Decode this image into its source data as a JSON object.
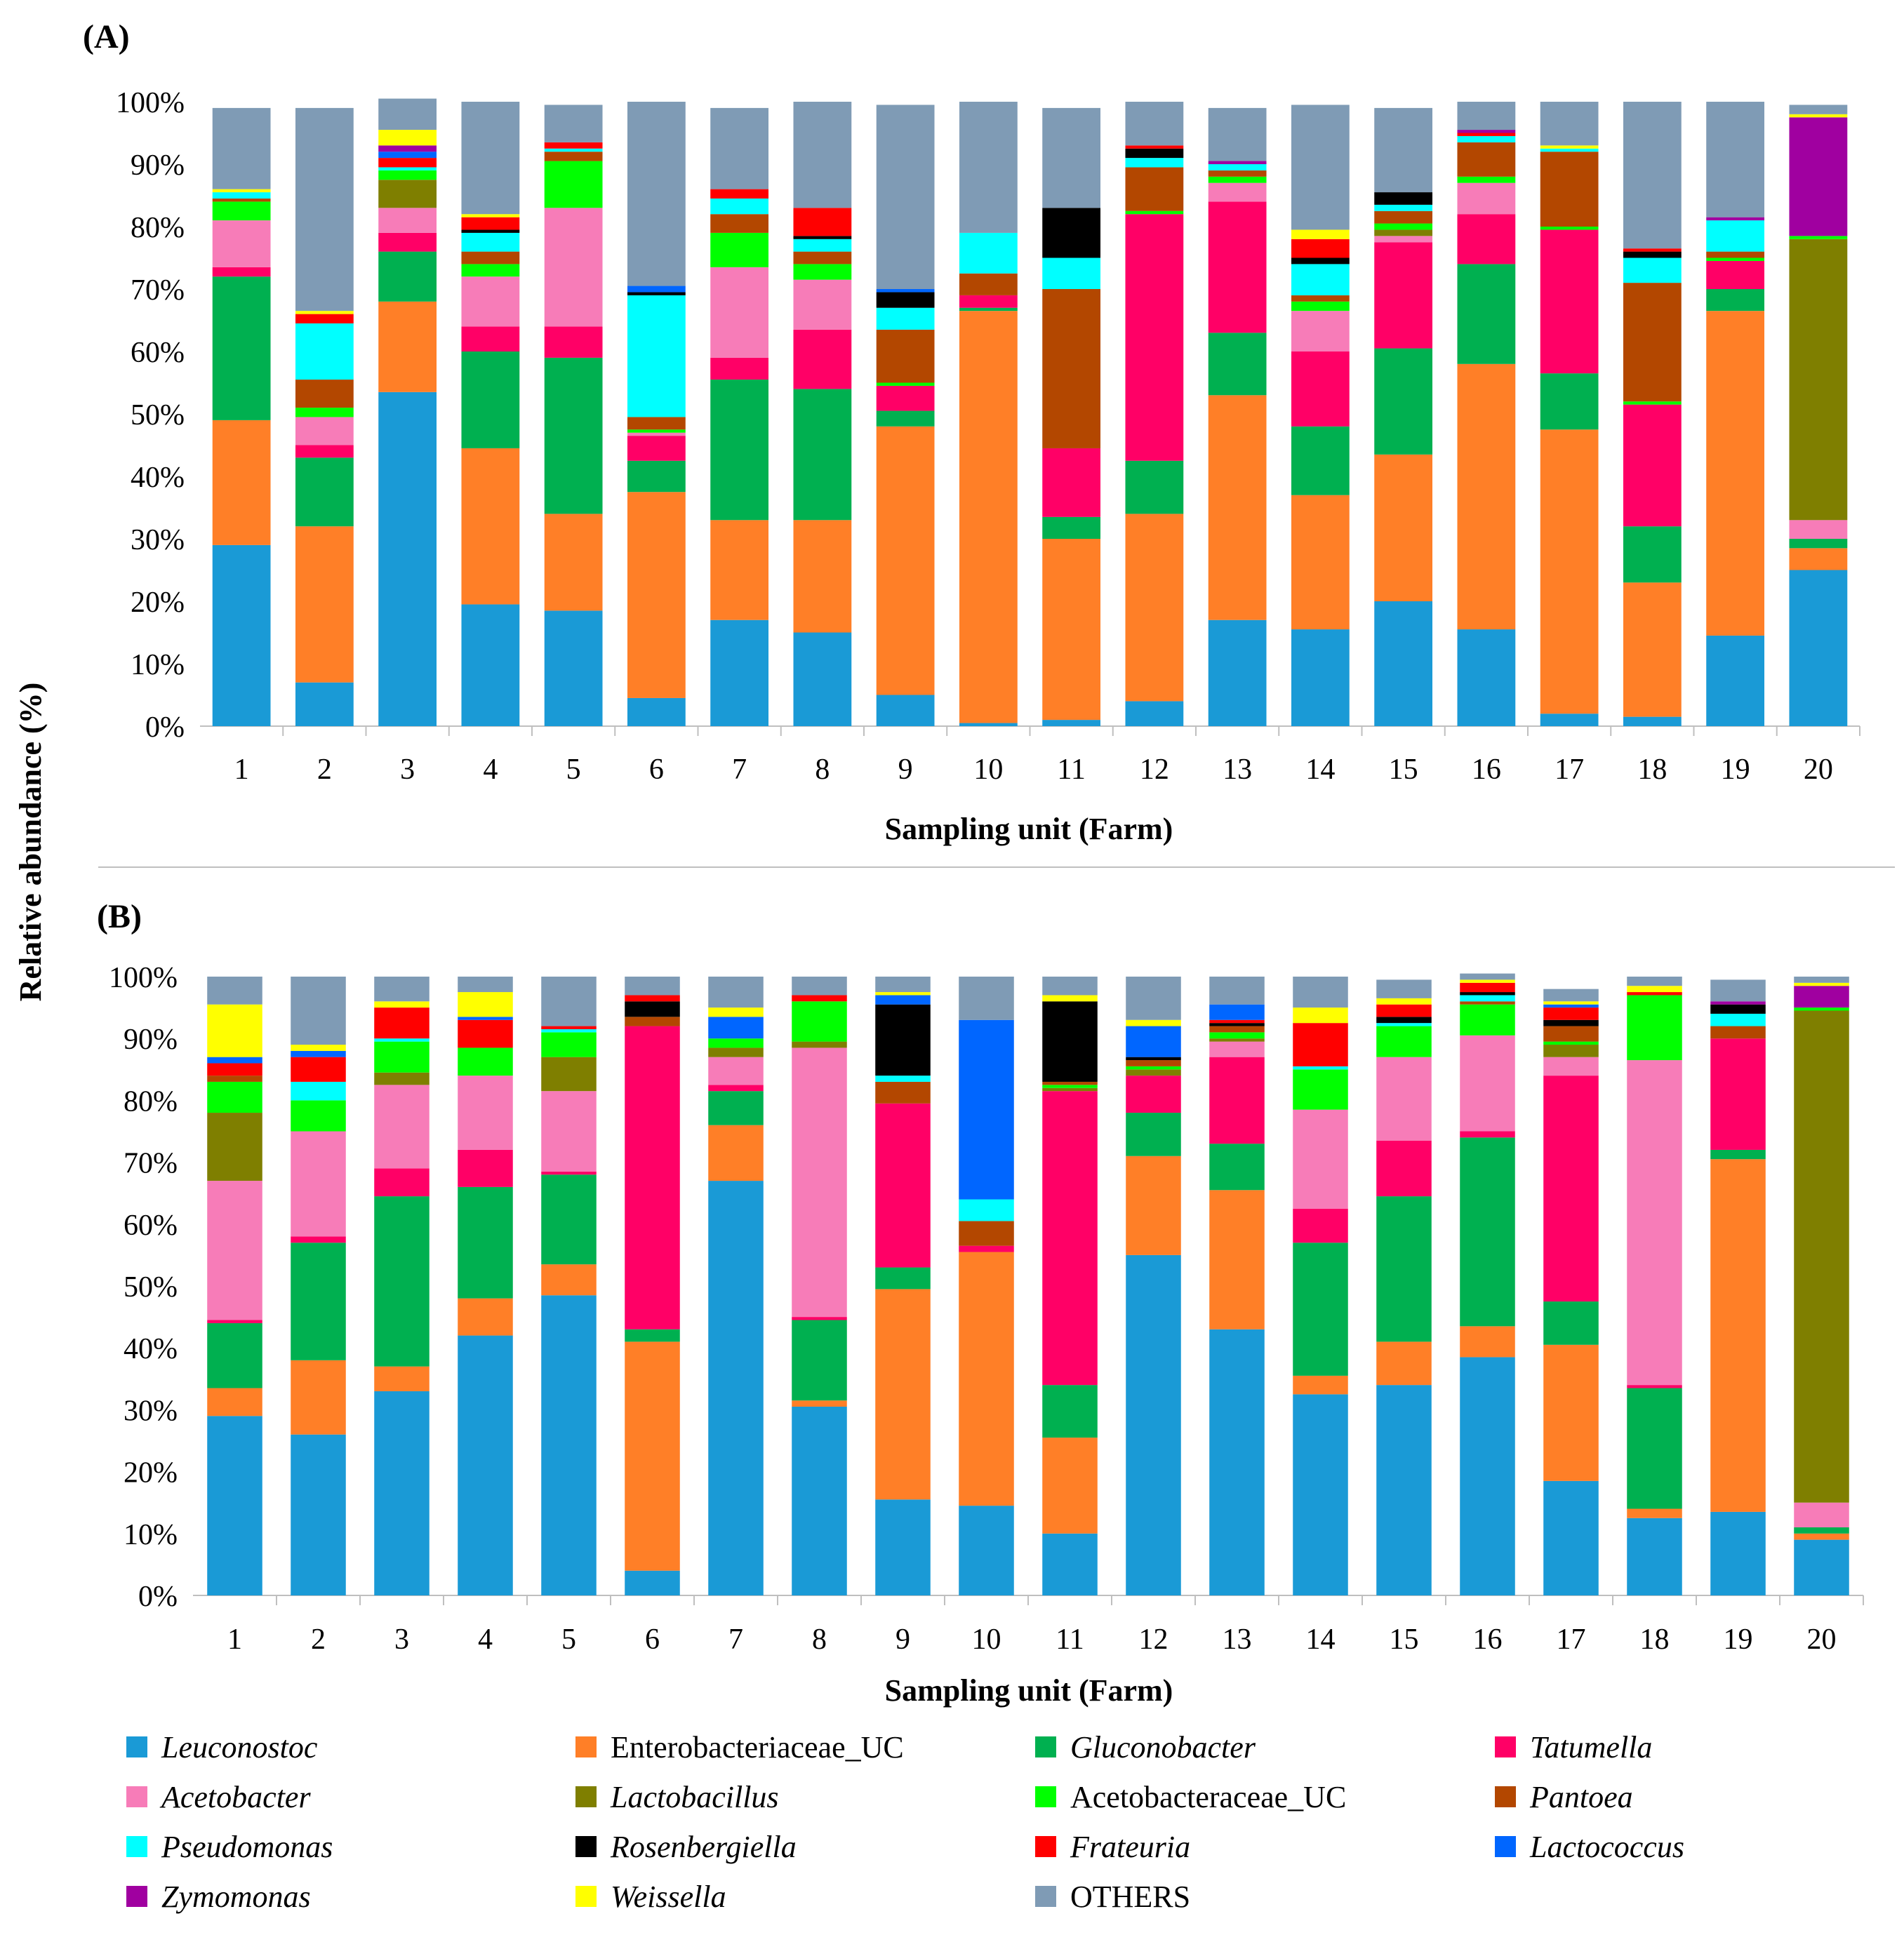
{
  "y_axis_title": "Relative abundance (%)",
  "genera": [
    {
      "key": "leu",
      "name": "Leuconostoc",
      "italic": true,
      "color": "#1a9ad6"
    },
    {
      "key": "ent",
      "name": "Enterobacteriaceae_UC",
      "italic": false,
      "color": "#ff7f27"
    },
    {
      "key": "glu",
      "name": "Gluconobacter",
      "italic": true,
      "color": "#00b050"
    },
    {
      "key": "tat",
      "name": "Tatumella",
      "italic": true,
      "color": "#ff0066"
    },
    {
      "key": "ace",
      "name": "Acetobacter",
      "italic": true,
      "color": "#f77cb8"
    },
    {
      "key": "lac",
      "name": "Lactobacillus",
      "italic": true,
      "color": "#7f7f00"
    },
    {
      "key": "acu",
      "name": "Acetobacteraceae_UC",
      "italic": false,
      "color": "#00ff00"
    },
    {
      "key": "pan",
      "name": "Pantoea",
      "italic": true,
      "color": "#b34700"
    },
    {
      "key": "pse",
      "name": "Pseudomonas",
      "italic": true,
      "color": "#00ffff"
    },
    {
      "key": "ros",
      "name": "Rosenbergiella",
      "italic": true,
      "color": "#000000"
    },
    {
      "key": "fra",
      "name": "Frateuria",
      "italic": true,
      "color": "#ff0000"
    },
    {
      "key": "lco",
      "name": "Lactococcus",
      "italic": true,
      "color": "#0066ff"
    },
    {
      "key": "zym",
      "name": "Zymomonas",
      "italic": true,
      "color": "#a000a0"
    },
    {
      "key": "wei",
      "name": "Weissella",
      "italic": true,
      "color": "#ffff00"
    },
    {
      "key": "oth",
      "name": "OTHERS",
      "italic": false,
      "color": "#7f9bb5"
    }
  ],
  "chart_data": [
    {
      "type": "bar",
      "stacked": true,
      "panel_label": "(A)",
      "xlabel": "Sampling unit (Farm)",
      "ylabel": "Relative abundance (%)",
      "ylim": [
        0,
        100
      ],
      "yticks": [
        "0%",
        "10%",
        "20%",
        "30%",
        "40%",
        "50%",
        "60%",
        "70%",
        "80%",
        "90%",
        "100%"
      ],
      "categories": [
        "1",
        "2",
        "3",
        "4",
        "5",
        "6",
        "7",
        "8",
        "9",
        "10",
        "11",
        "12",
        "13",
        "14",
        "15",
        "16",
        "17",
        "18",
        "19",
        "20"
      ],
      "series": [
        {
          "name": "Leuconostoc",
          "values": [
            29,
            7,
            53.5,
            19.5,
            18.5,
            4.5,
            17,
            15,
            5,
            0.5,
            1,
            4,
            17,
            15.5,
            20,
            15.5,
            2,
            1.5,
            14.5,
            25
          ]
        },
        {
          "name": "Enterobacteriaceae_UC",
          "values": [
            20,
            25,
            14.5,
            25,
            15.5,
            33,
            16,
            18,
            43,
            66,
            29,
            30,
            36,
            21.5,
            23.5,
            42.5,
            45.5,
            21.5,
            52,
            3.5
          ]
        },
        {
          "name": "Gluconobacter",
          "values": [
            23,
            11,
            8,
            15.5,
            25,
            5,
            22.5,
            21,
            2.5,
            0.5,
            3.5,
            8.5,
            10,
            11,
            17,
            16,
            9,
            9,
            3.5,
            1.5
          ]
        },
        {
          "name": "Tatumella",
          "values": [
            1.5,
            2,
            3,
            4,
            5,
            4,
            3.5,
            9.5,
            4,
            2,
            11,
            39.5,
            21,
            12,
            17,
            8,
            23,
            19.5,
            4.5,
            0
          ]
        },
        {
          "name": "Acetobacter",
          "values": [
            7.5,
            4.5,
            4,
            8,
            19,
            0.5,
            14.5,
            8,
            0,
            0,
            0,
            0,
            3,
            6.5,
            1,
            5,
            0,
            0,
            0,
            3
          ]
        },
        {
          "name": "Lactobacillus",
          "values": [
            0,
            0,
            4.5,
            0,
            0,
            0,
            0,
            0,
            0,
            0,
            0,
            0,
            0,
            0,
            1,
            0,
            0,
            0,
            0,
            45
          ]
        },
        {
          "name": "Acetobacteraceae_UC",
          "values": [
            3,
            1.5,
            1.5,
            2,
            7.5,
            0.5,
            5.5,
            2.5,
            0.5,
            0,
            0,
            0.5,
            1,
            1.5,
            1,
            1,
            0.5,
            0.5,
            0.5,
            0.5
          ]
        },
        {
          "name": "Pantoea",
          "values": [
            0.5,
            4.5,
            0,
            2,
            1.5,
            2,
            3,
            2,
            8.5,
            3.5,
            25.5,
            7,
            1,
            1,
            2,
            5.5,
            12,
            19,
            1,
            0
          ]
        },
        {
          "name": "Pseudomonas",
          "values": [
            1,
            9,
            0.5,
            3,
            0.5,
            19.5,
            2.5,
            2,
            3.5,
            6.5,
            5,
            1.5,
            1,
            5,
            1,
            1,
            0.5,
            4,
            5,
            0
          ]
        },
        {
          "name": "Rosenbergiella",
          "values": [
            0,
            0,
            0,
            0.5,
            0,
            0.5,
            0,
            0.5,
            2.5,
            0,
            8,
            1.5,
            0,
            1,
            2,
            0,
            0,
            1,
            0,
            0
          ]
        },
        {
          "name": "Frateuria",
          "values": [
            0,
            1.5,
            1.5,
            2,
            1,
            0,
            1.5,
            4.5,
            0,
            0,
            0,
            0.5,
            0,
            3,
            0,
            0.5,
            0,
            0.5,
            0,
            0
          ]
        },
        {
          "name": "Lactococcus",
          "values": [
            0,
            0,
            1,
            0,
            0,
            1,
            0,
            0,
            0.5,
            0,
            0,
            0,
            0,
            0,
            0,
            0,
            0,
            0,
            0,
            0
          ]
        },
        {
          "name": "Zymomonas",
          "values": [
            0,
            0,
            1,
            0,
            0,
            0,
            0,
            0,
            0,
            0,
            0,
            0,
            0.5,
            0,
            0,
            0.5,
            0,
            0,
            0.5,
            19
          ]
        },
        {
          "name": "Weissella",
          "values": [
            0.5,
            0.5,
            2.5,
            0.5,
            0,
            0,
            0,
            0,
            0,
            0,
            0,
            0,
            0,
            1.5,
            0,
            0,
            0.5,
            0,
            0,
            0.5
          ]
        },
        {
          "name": "OTHERS",
          "values": [
            13,
            32.5,
            5,
            18,
            6,
            29.5,
            13,
            17,
            29.5,
            21,
            16,
            7,
            8.5,
            20,
            13.5,
            4.5,
            7,
            23.5,
            18.5,
            1.5
          ]
        }
      ]
    },
    {
      "type": "bar",
      "stacked": true,
      "panel_label": "(B)",
      "xlabel": "Sampling unit (Farm)",
      "ylabel": "Relative abundance (%)",
      "ylim": [
        0,
        100
      ],
      "yticks": [
        "0%",
        "10%",
        "20%",
        "30%",
        "40%",
        "50%",
        "60%",
        "70%",
        "80%",
        "90%",
        "100%"
      ],
      "categories": [
        "1",
        "2",
        "3",
        "4",
        "5",
        "6",
        "7",
        "8",
        "9",
        "10",
        "11",
        "12",
        "13",
        "14",
        "15",
        "16",
        "17",
        "18",
        "19",
        "20"
      ],
      "series": [
        {
          "name": "Leuconostoc",
          "values": [
            29,
            26,
            33,
            42,
            48.5,
            4,
            67,
            30.5,
            15.5,
            14.5,
            10,
            55,
            43,
            32.5,
            34,
            38.5,
            18.5,
            12.5,
            13.5,
            9
          ]
        },
        {
          "name": "Enterobacteriaceae_UC",
          "values": [
            4.5,
            12,
            4,
            6,
            5,
            37,
            9,
            1,
            34,
            41,
            15.5,
            16,
            22.5,
            3,
            7,
            5,
            22,
            1.5,
            57,
            1
          ]
        },
        {
          "name": "Gluconobacter",
          "values": [
            10.5,
            19,
            27.5,
            18,
            14.5,
            2,
            5.5,
            13,
            3.5,
            0,
            8.5,
            7,
            7.5,
            21.5,
            23.5,
            30.5,
            7,
            19.5,
            1.5,
            1
          ]
        },
        {
          "name": "Tatumella",
          "values": [
            0.5,
            1,
            4.5,
            6,
            0.5,
            49,
            1,
            0.5,
            26.5,
            1,
            47.5,
            6,
            14,
            5.5,
            9,
            1,
            36.5,
            0.5,
            18,
            0
          ]
        },
        {
          "name": "Acetobacter",
          "values": [
            22.5,
            17,
            13.5,
            12,
            13,
            0,
            4.5,
            43.5,
            0,
            0,
            0,
            0,
            2.5,
            16,
            13.5,
            15.5,
            3,
            52.5,
            0,
            4
          ]
        },
        {
          "name": "Lactobacillus",
          "values": [
            11,
            0,
            2,
            0,
            5.5,
            0,
            1.5,
            1,
            0,
            0,
            0.5,
            1,
            0.5,
            0,
            0,
            0,
            2,
            0,
            0,
            79.5
          ]
        },
        {
          "name": "Acetobacteraceae_UC",
          "values": [
            5,
            5,
            5,
            4.5,
            4,
            0,
            1.5,
            6.5,
            0,
            0,
            0.5,
            0.5,
            1,
            6.5,
            5,
            5,
            0.5,
            10.5,
            0,
            0.5
          ]
        },
        {
          "name": "Pantoea",
          "values": [
            1,
            0,
            0,
            0,
            0,
            1.5,
            0,
            0,
            3.5,
            4,
            0.5,
            1,
            1,
            0,
            0,
            0.5,
            2.5,
            0,
            2,
            0
          ]
        },
        {
          "name": "Pseudomonas",
          "values": [
            0,
            3,
            0.5,
            0,
            0.5,
            0,
            0,
            0,
            1,
            3.5,
            0,
            0,
            0,
            0.5,
            0.5,
            1,
            0,
            0,
            2,
            0
          ]
        },
        {
          "name": "Rosenbergiella",
          "values": [
            0,
            0,
            0,
            0,
            0,
            2.5,
            0,
            0,
            11.5,
            0,
            13,
            0.5,
            0.5,
            0,
            1,
            0.5,
            1,
            0,
            1.5,
            0
          ]
        },
        {
          "name": "Frateuria",
          "values": [
            2,
            4,
            5,
            4.5,
            0.5,
            1,
            0,
            1,
            0,
            0,
            0,
            0,
            0.5,
            7,
            2,
            1.5,
            2,
            0.5,
            0,
            0
          ]
        },
        {
          "name": "Lactococcus",
          "values": [
            1,
            1,
            0,
            0.5,
            0,
            0,
            3.5,
            0,
            1.5,
            29,
            0,
            5,
            2.5,
            0,
            0,
            0,
            0.5,
            0,
            0,
            0
          ]
        },
        {
          "name": "Zymomonas",
          "values": [
            0,
            0,
            0,
            0,
            0,
            0,
            0,
            0,
            0,
            0,
            0,
            0,
            0,
            0,
            0,
            0,
            0,
            0,
            0.5,
            3.5
          ]
        },
        {
          "name": "Weissella",
          "values": [
            8.5,
            1,
            1,
            4,
            0,
            0,
            1.5,
            0,
            0.5,
            0,
            1,
            1,
            0,
            2.5,
            1,
            0.5,
            0.5,
            1,
            0,
            0.5
          ]
        },
        {
          "name": "OTHERS",
          "values": [
            4.5,
            11,
            4,
            2.5,
            8,
            3,
            5,
            3,
            2.5,
            7,
            3,
            7,
            4.5,
            5,
            3,
            1,
            2,
            1.5,
            3.5,
            1
          ]
        }
      ]
    }
  ]
}
